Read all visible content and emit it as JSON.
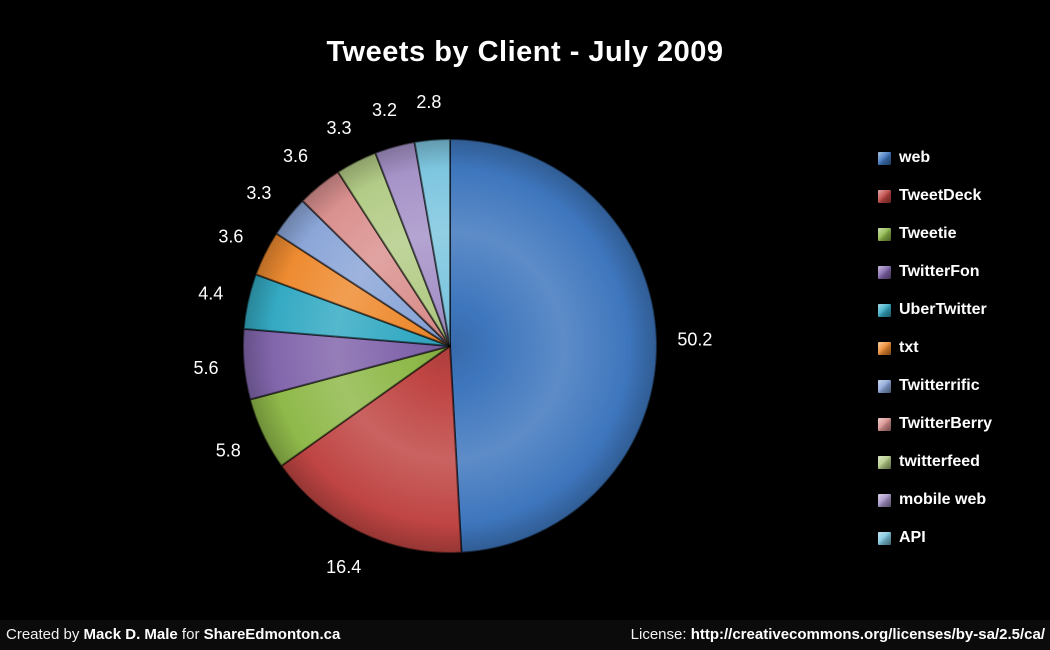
{
  "chart_data": {
    "type": "pie",
    "title": "Tweets by Client - July 2009",
    "legend_position": "right",
    "background_color": "#000000",
    "label_color": "#ffffff",
    "categories": [
      "web",
      "TweetDeck",
      "Tweetie",
      "TwitterFon",
      "UberTwitter",
      "txt",
      "Twitterrific",
      "TwitterBerry",
      "twitterfeed",
      "mobile web",
      "API"
    ],
    "values": [
      50.2,
      16.4,
      5.8,
      5.6,
      4.4,
      3.6,
      3.3,
      3.6,
      3.3,
      3.2,
      2.8
    ],
    "data_labels": [
      "50.2",
      "16.4",
      "5.8",
      "5.6",
      "4.4",
      "3.6",
      "3.3",
      "3.6",
      "3.3",
      "3.2",
      "2.8"
    ],
    "colors": [
      "#3E76BD",
      "#BF4543",
      "#8FB94A",
      "#8266AC",
      "#35AAC3",
      "#EE8B31",
      "#8BA6D8",
      "#DA918F",
      "#B3CC87",
      "#A693C8",
      "#7DC6DF"
    ],
    "start_angle_deg": 0,
    "direction": "clockwise"
  },
  "footer": {
    "created_prefix": "Created by ",
    "author": "Mack D. Male",
    "created_infix": " for ",
    "site": "ShareEdmonton.ca",
    "license_label": "License: ",
    "license_url": "http://creativecommons.org/licenses/by-sa/2.5/ca/"
  }
}
